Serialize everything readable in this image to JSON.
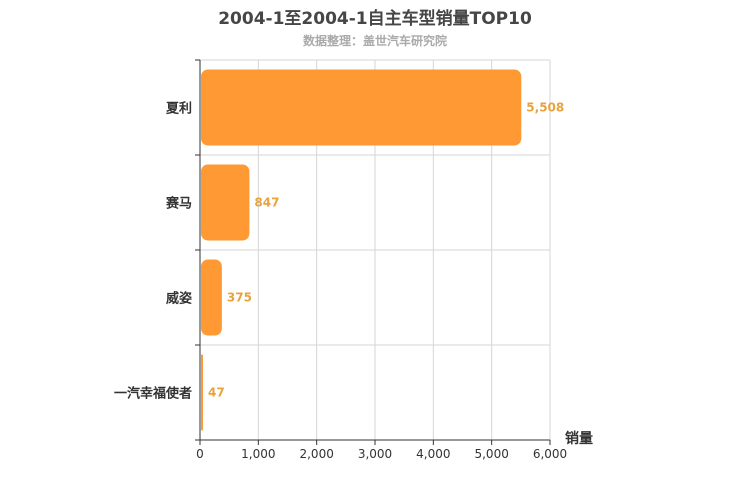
{
  "chart_data": {
    "type": "bar",
    "orientation": "horizontal",
    "title": "2004-1至2004-1自主车型销量TOP10",
    "subtitle": "数据整理：盖世汽车研究院",
    "xlabel": "销量",
    "ylabel": "",
    "categories": [
      "夏利",
      "赛马",
      "威姿",
      "一汽幸福使者"
    ],
    "values": [
      5508,
      847,
      375,
      47
    ],
    "value_labels": [
      "5,508",
      "847",
      "375",
      "47"
    ],
    "xlim": [
      0,
      6000
    ],
    "xticks": [
      0,
      1000,
      2000,
      3000,
      4000,
      5000,
      6000
    ],
    "xtick_labels": [
      "0",
      "1,000",
      "2,000",
      "3,000",
      "4,000",
      "5,000",
      "6,000"
    ],
    "grid": true,
    "legend": "none",
    "bar_color": "#FF9933",
    "label_color": "#E8A33D"
  }
}
